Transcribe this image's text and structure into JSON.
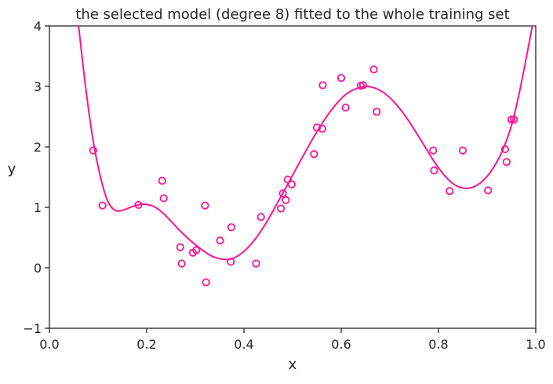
{
  "chart_data": {
    "type": "scatter",
    "title": "the selected model (degree 8) fitted to the whole training set",
    "xlabel": "x",
    "ylabel": "y",
    "xlim": [
      0.0,
      1.0
    ],
    "ylim": [
      -1,
      4
    ],
    "xticks": [
      "0.0",
      "0.2",
      "0.4",
      "0.6",
      "0.8",
      "1.0"
    ],
    "yticks": [
      "−1",
      "0",
      "1",
      "2",
      "3",
      "4"
    ],
    "grid": false,
    "legend": "none",
    "color": "#ff1493",
    "series": [
      {
        "kind": "points",
        "points": [
          [
            0.09,
            1.94
          ],
          [
            0.109,
            1.03
          ],
          [
            0.183,
            1.04
          ],
          [
            0.232,
            1.44
          ],
          [
            0.235,
            1.15
          ],
          [
            0.269,
            0.34
          ],
          [
            0.272,
            0.07
          ],
          [
            0.295,
            0.25
          ],
          [
            0.302,
            0.29
          ],
          [
            0.32,
            1.03
          ],
          [
            0.322,
            -0.24
          ],
          [
            0.351,
            0.45
          ],
          [
            0.373,
            0.1
          ],
          [
            0.374,
            0.67
          ],
          [
            0.425,
            0.07
          ],
          [
            0.435,
            0.84
          ],
          [
            0.476,
            0.98
          ],
          [
            0.48,
            1.23
          ],
          [
            0.486,
            1.12
          ],
          [
            0.49,
            1.46
          ],
          [
            0.498,
            1.38
          ],
          [
            0.544,
            1.88
          ],
          [
            0.55,
            2.32
          ],
          [
            0.561,
            2.3
          ],
          [
            0.562,
            3.02
          ],
          [
            0.6,
            3.14
          ],
          [
            0.609,
            2.65
          ],
          [
            0.64,
            3.01
          ],
          [
            0.645,
            3.02
          ],
          [
            0.667,
            3.28
          ],
          [
            0.673,
            2.58
          ],
          [
            0.789,
            1.94
          ],
          [
            0.791,
            1.61
          ],
          [
            0.823,
            1.27
          ],
          [
            0.85,
            1.94
          ],
          [
            0.902,
            1.28
          ],
          [
            0.937,
            1.96
          ],
          [
            0.94,
            1.75
          ],
          [
            0.95,
            2.45
          ],
          [
            0.955,
            2.45
          ]
        ]
      },
      {
        "kind": "curve",
        "points": [
          [
            0.06,
            4.0
          ],
          [
            0.075,
            2.95
          ],
          [
            0.09,
            2.1
          ],
          [
            0.105,
            1.5
          ],
          [
            0.12,
            1.1
          ],
          [
            0.135,
            0.95
          ],
          [
            0.15,
            0.95
          ],
          [
            0.17,
            1.01
          ],
          [
            0.19,
            1.05
          ],
          [
            0.21,
            1.03
          ],
          [
            0.23,
            0.93
          ],
          [
            0.25,
            0.77
          ],
          [
            0.27,
            0.6
          ],
          [
            0.29,
            0.45
          ],
          [
            0.31,
            0.32
          ],
          [
            0.33,
            0.21
          ],
          [
            0.35,
            0.15
          ],
          [
            0.37,
            0.14
          ],
          [
            0.39,
            0.21
          ],
          [
            0.41,
            0.35
          ],
          [
            0.43,
            0.55
          ],
          [
            0.45,
            0.8
          ],
          [
            0.47,
            1.09
          ],
          [
            0.49,
            1.38
          ],
          [
            0.51,
            1.68
          ],
          [
            0.53,
            1.97
          ],
          [
            0.55,
            2.25
          ],
          [
            0.57,
            2.5
          ],
          [
            0.59,
            2.71
          ],
          [
            0.61,
            2.87
          ],
          [
            0.63,
            2.96
          ],
          [
            0.65,
            3.0
          ],
          [
            0.67,
            2.97
          ],
          [
            0.69,
            2.88
          ],
          [
            0.71,
            2.73
          ],
          [
            0.73,
            2.53
          ],
          [
            0.75,
            2.29
          ],
          [
            0.77,
            2.03
          ],
          [
            0.79,
            1.77
          ],
          [
            0.81,
            1.55
          ],
          [
            0.83,
            1.39
          ],
          [
            0.85,
            1.32
          ],
          [
            0.87,
            1.33
          ],
          [
            0.89,
            1.43
          ],
          [
            0.91,
            1.62
          ],
          [
            0.93,
            1.91
          ],
          [
            0.95,
            2.35
          ],
          [
            0.965,
            2.85
          ],
          [
            0.98,
            3.45
          ],
          [
            0.993,
            4.0
          ]
        ]
      }
    ]
  }
}
